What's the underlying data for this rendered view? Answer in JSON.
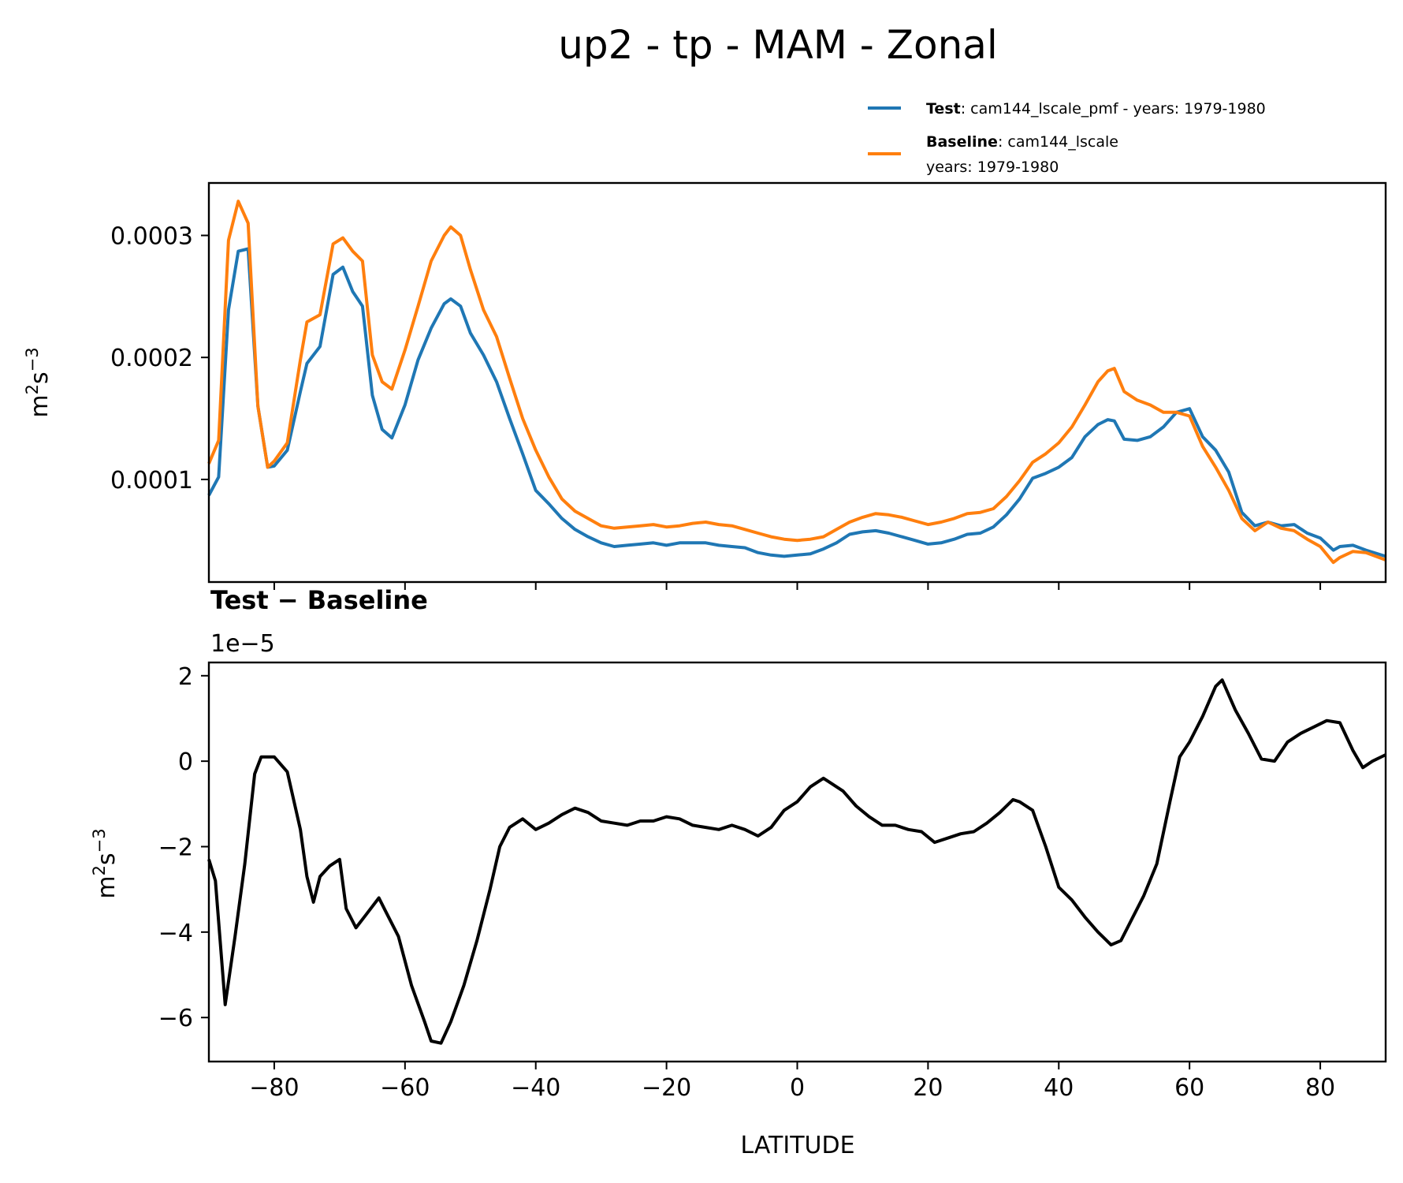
{
  "chart_data": [
    {
      "type": "line",
      "title": "up2 - tp - MAM - Zonal",
      "xlabel": "",
      "ylabel": "m$^2$s$^{-3}$",
      "ylabel_display": {
        "base1": "m",
        "sup1": "2",
        "base2": "s",
        "sup2": "−3"
      },
      "xlim": [
        -90,
        90
      ],
      "ylim": [
        1.59e-05,
        0.000343
      ],
      "values_scale": 0.0001,
      "xticks": [
        -80,
        -60,
        -40,
        -20,
        0,
        20,
        40,
        60,
        80
      ],
      "yticks": [
        0.0001,
        0.0002,
        0.0003
      ],
      "ytick_labels": [
        "0.0001",
        "0.0002",
        "0.0003"
      ],
      "legend": {
        "placement": "top-right, above axes",
        "entries": [
          {
            "bold": "Test",
            "text": ": cam144_lscale_pmf - years: 1979-1980",
            "text2": "",
            "color": "#1f77b4"
          },
          {
            "bold": "Baseline",
            "text": ": cam144_lscale",
            "text2": "years: 1979-1980",
            "color": "#ff7f0e"
          }
        ]
      },
      "x": [
        -90,
        -88.5,
        -87,
        -85.5,
        -84,
        -82.5,
        -81,
        -80,
        -78,
        -76,
        -75,
        -73,
        -71,
        -69.5,
        -68,
        -66.5,
        -65,
        -63.5,
        -62,
        -60,
        -58,
        -56,
        -54,
        -53,
        -51.5,
        -50,
        -48,
        -46,
        -44,
        -42,
        -40,
        -38,
        -36,
        -34,
        -32,
        -30,
        -28,
        -26,
        -24,
        -22,
        -20,
        -18,
        -16,
        -14,
        -12,
        -10,
        -8,
        -6,
        -4,
        -2,
        0,
        2,
        4,
        6,
        8,
        10,
        12,
        14,
        16,
        18,
        20,
        22,
        24,
        26,
        28,
        30,
        32,
        34,
        36,
        38,
        40,
        42,
        44,
        46,
        47.5,
        48.5,
        50,
        52,
        54,
        56,
        58,
        60,
        62,
        64,
        66,
        68,
        70,
        72,
        74,
        76,
        78,
        80,
        82,
        83,
        85,
        87,
        90
      ],
      "series": [
        {
          "name": "Test",
          "color": "#1f77b4",
          "values": [
            0.87,
            1.02,
            2.39,
            2.87,
            2.89,
            1.6,
            1.1,
            1.11,
            1.24,
            1.72,
            1.95,
            2.09,
            2.68,
            2.74,
            2.54,
            2.42,
            1.69,
            1.41,
            1.34,
            1.61,
            1.98,
            2.24,
            2.44,
            2.48,
            2.42,
            2.2,
            2.02,
            1.8,
            1.5,
            1.21,
            0.91,
            0.8,
            0.68,
            0.59,
            0.53,
            0.48,
            0.45,
            0.46,
            0.47,
            0.48,
            0.46,
            0.48,
            0.48,
            0.48,
            0.46,
            0.45,
            0.44,
            0.4,
            0.38,
            0.37,
            0.38,
            0.39,
            0.43,
            0.48,
            0.55,
            0.57,
            0.58,
            0.56,
            0.53,
            0.5,
            0.47,
            0.48,
            0.51,
            0.55,
            0.56,
            0.61,
            0.71,
            0.84,
            1.01,
            1.05,
            1.1,
            1.18,
            1.35,
            1.45,
            1.49,
            1.48,
            1.33,
            1.32,
            1.35,
            1.43,
            1.55,
            1.58,
            1.35,
            1.24,
            1.06,
            0.73,
            0.62,
            0.65,
            0.62,
            0.63,
            0.56,
            0.52,
            0.42,
            0.45,
            0.46,
            0.42,
            0.37
          ]
        },
        {
          "name": "Baseline",
          "color": "#ff7f0e",
          "values": [
            1.13,
            1.32,
            2.96,
            3.28,
            3.1,
            1.6,
            1.1,
            1.15,
            1.3,
            1.98,
            2.29,
            2.35,
            2.93,
            2.98,
            2.87,
            2.79,
            2.02,
            1.8,
            1.74,
            2.06,
            2.42,
            2.79,
            3.0,
            3.07,
            3.0,
            2.72,
            2.39,
            2.17,
            1.83,
            1.5,
            1.24,
            1.02,
            0.84,
            0.74,
            0.68,
            0.62,
            0.6,
            0.61,
            0.62,
            0.63,
            0.61,
            0.62,
            0.64,
            0.65,
            0.63,
            0.62,
            0.59,
            0.56,
            0.53,
            0.51,
            0.5,
            0.51,
            0.53,
            0.59,
            0.65,
            0.69,
            0.72,
            0.71,
            0.69,
            0.66,
            0.63,
            0.65,
            0.68,
            0.72,
            0.73,
            0.76,
            0.86,
            0.99,
            1.14,
            1.21,
            1.3,
            1.43,
            1.61,
            1.8,
            1.89,
            1.91,
            1.72,
            1.65,
            1.61,
            1.55,
            1.55,
            1.52,
            1.27,
            1.1,
            0.91,
            0.68,
            0.58,
            0.65,
            0.6,
            0.58,
            0.51,
            0.45,
            0.32,
            0.36,
            0.41,
            0.4,
            0.34
          ]
        }
      ]
    },
    {
      "type": "line",
      "title": "Test − Baseline",
      "offset_text": "1e−5",
      "xlabel": "LATITUDE",
      "ylabel": "m$^2$s$^{-3}$",
      "ylabel_display": {
        "base1": "m",
        "sup1": "2",
        "base2": "s",
        "sup2": "−3"
      },
      "xlim": [
        -90,
        90
      ],
      "ylim": [
        -7.03,
        2.31
      ],
      "values_scale": 1e-05,
      "xticks": [
        -80,
        -60,
        -40,
        -20,
        0,
        20,
        40,
        60,
        80
      ],
      "xtick_labels": [
        "−80",
        "−60",
        "−40",
        "−20",
        "0",
        "20",
        "40",
        "60",
        "80"
      ],
      "yticks": [
        -6,
        -4,
        -2,
        0,
        2
      ],
      "ytick_labels": [
        "−6",
        "−4",
        "−2",
        "0",
        "2"
      ],
      "x": [
        -90,
        -89,
        -87.5,
        -86,
        -84.5,
        -83,
        -82,
        -80,
        -78,
        -76,
        -75,
        -74,
        -73,
        -71.5,
        -70,
        -69,
        -67.5,
        -66,
        -64,
        -63,
        -61,
        -59,
        -57,
        -56,
        -54.5,
        -53,
        -51,
        -49,
        -47,
        -45.5,
        -44,
        -42,
        -40,
        -38,
        -36,
        -34,
        -32,
        -30,
        -28,
        -26,
        -24,
        -22,
        -20,
        -18,
        -16,
        -14,
        -12,
        -10,
        -8,
        -6,
        -4,
        -2,
        0,
        2,
        4,
        5,
        7,
        9,
        11,
        13,
        15,
        17,
        19,
        21,
        23,
        25,
        27,
        29,
        31,
        33,
        34,
        36,
        38,
        40,
        42,
        44,
        46,
        48,
        49.5,
        51,
        53,
        55,
        57,
        58.5,
        60,
        62,
        64,
        65,
        67,
        69,
        71,
        73,
        75,
        77,
        79,
        81,
        83,
        85,
        86.5,
        88,
        90
      ],
      "series": [
        {
          "name": "Test − Baseline",
          "color": "#000000",
          "values": [
            -2.3,
            -2.8,
            -5.7,
            -4.1,
            -2.4,
            -0.3,
            0.1,
            0.1,
            -0.25,
            -1.6,
            -2.7,
            -3.3,
            -2.7,
            -2.45,
            -2.3,
            -3.45,
            -3.9,
            -3.6,
            -3.2,
            -3.5,
            -4.1,
            -5.25,
            -6.1,
            -6.55,
            -6.6,
            -6.1,
            -5.25,
            -4.2,
            -3.0,
            -2.0,
            -1.55,
            -1.35,
            -1.6,
            -1.45,
            -1.25,
            -1.1,
            -1.2,
            -1.4,
            -1.45,
            -1.5,
            -1.4,
            -1.4,
            -1.3,
            -1.35,
            -1.5,
            -1.55,
            -1.6,
            -1.5,
            -1.6,
            -1.75,
            -1.55,
            -1.15,
            -0.95,
            -0.6,
            -0.4,
            -0.5,
            -0.7,
            -1.05,
            -1.3,
            -1.5,
            -1.5,
            -1.6,
            -1.65,
            -1.9,
            -1.8,
            -1.7,
            -1.65,
            -1.45,
            -1.2,
            -0.9,
            -0.95,
            -1.15,
            -2.0,
            -2.95,
            -3.25,
            -3.65,
            -4.0,
            -4.3,
            -4.2,
            -3.75,
            -3.15,
            -2.4,
            -0.95,
            0.1,
            0.45,
            1.05,
            1.75,
            1.9,
            1.2,
            0.65,
            0.05,
            0.0,
            0.45,
            0.65,
            0.8,
            0.95,
            0.9,
            0.25,
            -0.15,
            0.0,
            0.15
          ]
        }
      ]
    }
  ]
}
